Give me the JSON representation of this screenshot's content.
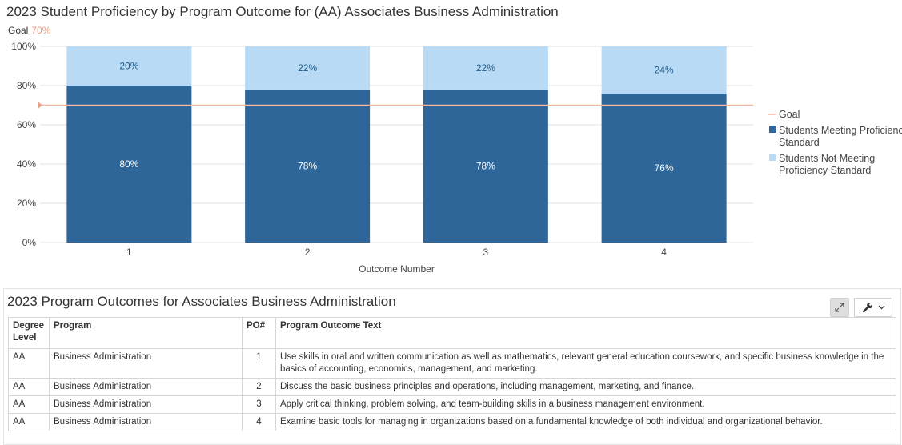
{
  "chart": {
    "title": "2023 Student Proficiency by Program Outcome for (AA) Associates Business Administration",
    "goal_label": "Goal",
    "goal_value_text": "70%"
  },
  "chart_data": {
    "type": "bar",
    "stacked": true,
    "categories": [
      "1",
      "2",
      "3",
      "4"
    ],
    "series": [
      {
        "name": "Students Meeting Proficiency Standard",
        "values": [
          80,
          78,
          78,
          76
        ],
        "labels": [
          "80%",
          "78%",
          "78%",
          "76%"
        ],
        "color": "#2e6699",
        "label_color": "#ffffff"
      },
      {
        "name": "Students Not Meeting Proficiency Standard",
        "values": [
          20,
          22,
          22,
          24
        ],
        "labels": [
          "20%",
          "22%",
          "22%",
          "24%"
        ],
        "color": "#b8daf4",
        "label_color": "#1e5a8a"
      }
    ],
    "goal": {
      "name": "Goal",
      "value": 70,
      "color": "#f4b7a4"
    },
    "xlabel": "Outcome Number",
    "ylabel": "",
    "ylim": [
      0,
      100
    ],
    "yticks": [
      0,
      20,
      40,
      60,
      80,
      100
    ],
    "ytick_labels": [
      "0%",
      "20%",
      "40%",
      "60%",
      "80%",
      "100%"
    ],
    "grid": true,
    "legend_position": "right"
  },
  "table_panel": {
    "title": "2023 Program Outcomes for Associates Business Administration",
    "icons": {
      "expand": "expand-icon",
      "settings": "wrench-icon",
      "dropdown": "chevron-down-icon"
    },
    "headers": {
      "degree": "Degree Level",
      "program": "Program",
      "po": "PO#",
      "text": "Program Outcome Text"
    },
    "rows": [
      {
        "degree": "AA",
        "program": "Business Administration",
        "po": "1",
        "text": "Use skills in oral and written communication as well as mathematics, relevant general education coursework, and specific business knowledge in the basics of accounting, economics, management, and marketing."
      },
      {
        "degree": "AA",
        "program": "Business Administration",
        "po": "2",
        "text": "Discuss the basic business principles and operations, including management, marketing, and finance."
      },
      {
        "degree": "AA",
        "program": "Business Administration",
        "po": "3",
        "text": "Apply critical thinking, problem solving, and team-building skills in a business management environment."
      },
      {
        "degree": "AA",
        "program": "Business Administration",
        "po": "4",
        "text": "Examine basic tools for managing in organizations based on a fundamental knowledge of both individual and organizational behavior."
      }
    ]
  }
}
